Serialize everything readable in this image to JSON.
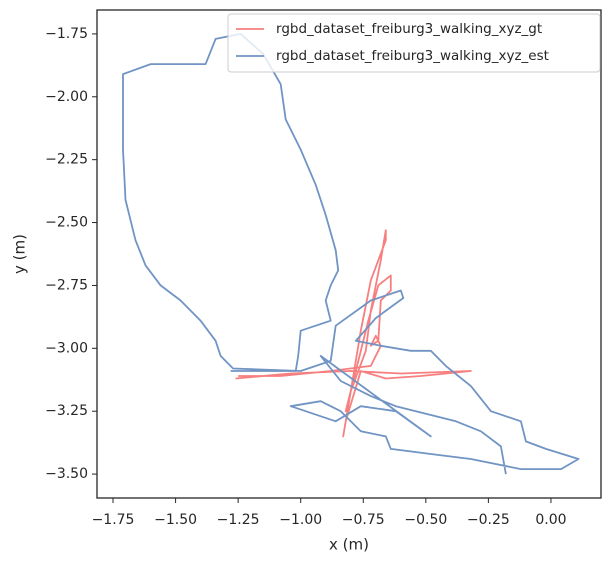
{
  "chart_data": {
    "type": "line",
    "xlabel": "x (m)",
    "ylabel": "y (m)",
    "xlim": [
      -1.814,
      0.2
    ],
    "ylim": [
      -3.595,
      -1.655
    ],
    "xticks": [
      {
        "value": -1.75,
        "label": "−1.75"
      },
      {
        "value": -1.5,
        "label": "−1.50"
      },
      {
        "value": -1.25,
        "label": "−1.25"
      },
      {
        "value": -1.0,
        "label": "−1.00"
      },
      {
        "value": -0.75,
        "label": "−0.75"
      },
      {
        "value": -0.5,
        "label": "−0.50"
      },
      {
        "value": -0.25,
        "label": "−0.25"
      },
      {
        "value": 0,
        "label": "0.00"
      }
    ],
    "yticks": [
      {
        "value": -1.75,
        "label": "−1.75"
      },
      {
        "value": -2.0,
        "label": "−2.00"
      },
      {
        "value": -2.25,
        "label": "−2.25"
      },
      {
        "value": -2.5,
        "label": "−2.50"
      },
      {
        "value": -2.75,
        "label": "−2.75"
      },
      {
        "value": -3.0,
        "label": "−3.00"
      },
      {
        "value": -3.25,
        "label": "−3.25"
      },
      {
        "value": -3.5,
        "label": "−3.50"
      }
    ],
    "grid": false,
    "legend": "upper right",
    "series": [
      {
        "name": "rgbd_dataset_freiburg3_walking_xyz_gt",
        "color": "#f77f7f",
        "x": [
          -1.26,
          -1.04,
          -0.8,
          -0.6,
          -0.32,
          -0.52,
          -0.66,
          -0.76,
          -0.82,
          -0.83,
          -0.8,
          -0.76,
          -0.72,
          -0.66,
          -0.66,
          -0.68,
          -0.72,
          -0.74,
          -0.8,
          -0.82,
          -0.78,
          -0.73,
          -0.69,
          -0.64,
          -0.64,
          -0.68,
          -0.69,
          -0.72,
          -0.7,
          -0.68,
          -0.72,
          -0.88,
          -1.08,
          -1.25
        ],
        "values": [
          -3.12,
          -3.1,
          -3.09,
          -3.1,
          -3.09,
          -3.11,
          -3.12,
          -3.09,
          -3.29,
          -3.35,
          -3.17,
          -2.93,
          -2.73,
          -2.57,
          -2.53,
          -2.65,
          -2.85,
          -3.01,
          -3.17,
          -3.25,
          -3.09,
          -2.89,
          -2.75,
          -2.71,
          -2.77,
          -2.81,
          -2.97,
          -2.99,
          -2.95,
          -2.99,
          -3.07,
          -3.09,
          -3.11,
          -3.11
        ]
      },
      {
        "name": "rgbd_dataset_freiburg3_walking_xyz_est",
        "color": "#7094c4",
        "x": [
          -1.28,
          -1.02,
          -1.01,
          -1.0,
          -0.88,
          -0.9,
          -0.88,
          -0.85,
          -0.86,
          -0.9,
          -0.94,
          -1.0,
          -1.06,
          -1.08,
          -1.15,
          -1.24,
          -1.34,
          -1.38,
          -1.6,
          -1.71,
          -1.71,
          -1.7,
          -1.66,
          -1.62,
          -1.56,
          -1.48,
          -1.4,
          -1.34,
          -1.32,
          -1.27,
          -1.0,
          -0.88,
          -0.86,
          -0.72,
          -0.6,
          -0.59,
          -0.7,
          -0.78,
          -0.68,
          -0.56,
          -0.48,
          -0.42,
          -0.32,
          -0.24,
          -0.12,
          -0.1,
          -0.02,
          0.11,
          0.04,
          -0.12,
          -0.32,
          -0.48,
          -0.64,
          -0.66,
          -0.76,
          -0.84,
          -0.92,
          -1.04,
          -0.98,
          -0.86,
          -0.76,
          -0.62,
          -0.48,
          -0.92,
          -0.84,
          -0.72,
          -0.62,
          -0.38,
          -0.28,
          -0.2,
          -0.18
        ],
        "values": [
          -3.09,
          -3.09,
          -3.03,
          -2.93,
          -2.89,
          -2.81,
          -2.75,
          -2.69,
          -2.61,
          -2.47,
          -2.35,
          -2.21,
          -2.09,
          -1.95,
          -1.83,
          -1.75,
          -1.77,
          -1.87,
          -1.87,
          -1.91,
          -2.21,
          -2.41,
          -2.57,
          -2.67,
          -2.75,
          -2.81,
          -2.89,
          -2.97,
          -3.03,
          -3.08,
          -3.09,
          -3.05,
          -2.91,
          -2.81,
          -2.77,
          -2.8,
          -2.88,
          -2.97,
          -2.99,
          -3.01,
          -3.01,
          -3.07,
          -3.15,
          -3.25,
          -3.29,
          -3.37,
          -3.4,
          -3.44,
          -3.48,
          -3.48,
          -3.44,
          -3.42,
          -3.4,
          -3.35,
          -3.33,
          -3.25,
          -3.21,
          -3.23,
          -3.25,
          -3.29,
          -3.23,
          -3.25,
          -3.35,
          -3.03,
          -3.13,
          -3.19,
          -3.23,
          -3.29,
          -3.33,
          -3.39,
          -3.5
        ]
      }
    ]
  }
}
